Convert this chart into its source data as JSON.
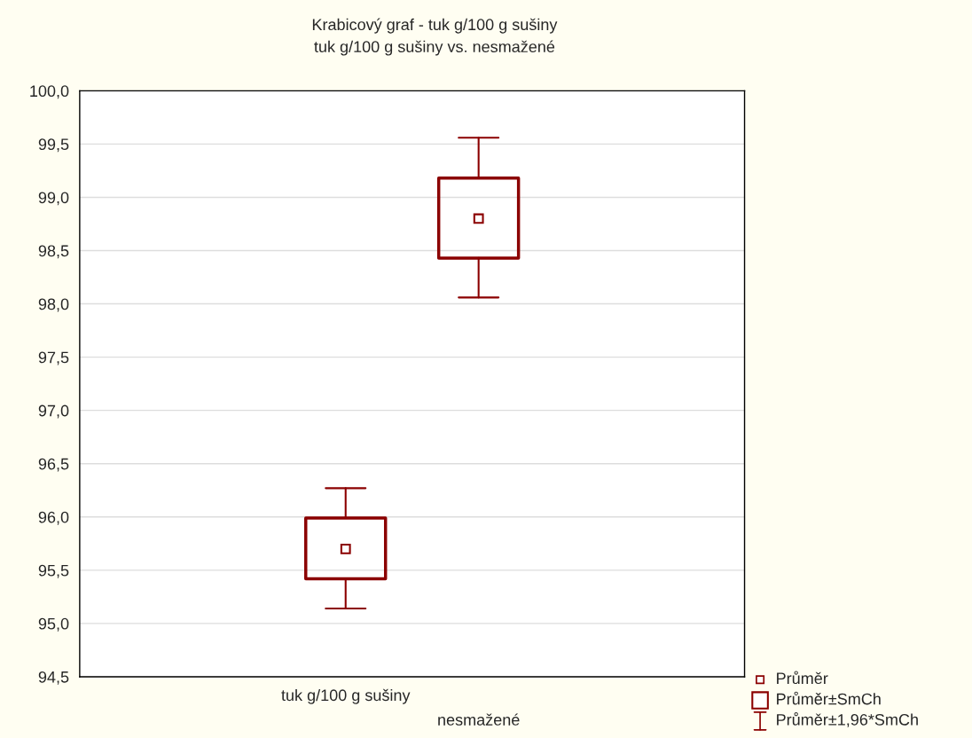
{
  "chart_data": {
    "type": "box",
    "title": "Krabicový graf - tuk g/100 g sušiny",
    "subtitle": "tuk g/100 g sušiny vs. nesmažené",
    "categories": [
      null,
      "tuk g/100 g sušiny",
      "nesmažené",
      null
    ],
    "ylim": [
      94.5,
      100.0
    ],
    "yticks": [
      {
        "value": 94.5,
        "label": "94,5"
      },
      {
        "value": 95.0,
        "label": "95,0"
      },
      {
        "value": 95.5,
        "label": "95,5"
      },
      {
        "value": 96.0,
        "label": "96,0"
      },
      {
        "value": 96.5,
        "label": "96,5"
      },
      {
        "value": 97.0,
        "label": "97,0"
      },
      {
        "value": 97.5,
        "label": "97,5"
      },
      {
        "value": 98.0,
        "label": "98,0"
      },
      {
        "value": 98.5,
        "label": "98,5"
      },
      {
        "value": 99.0,
        "label": "99,0"
      },
      {
        "value": 99.5,
        "label": "99,5"
      },
      {
        "value": 100.0,
        "label": "100,0"
      }
    ],
    "grid": "y",
    "color": "#8b0000",
    "marker": "square",
    "boxes": [
      null,
      {
        "low": 95.14,
        "q1": 95.42,
        "q3": 95.99,
        "high": 96.27,
        "mean": 95.7
      },
      {
        "low": 98.06,
        "q1": 98.43,
        "q3": 99.18,
        "high": 99.56,
        "mean": 98.8
      },
      null
    ],
    "annotations": [
      "Průměr",
      "Průměr±SmCh",
      "Průměr±1,96*SmCh"
    ]
  }
}
